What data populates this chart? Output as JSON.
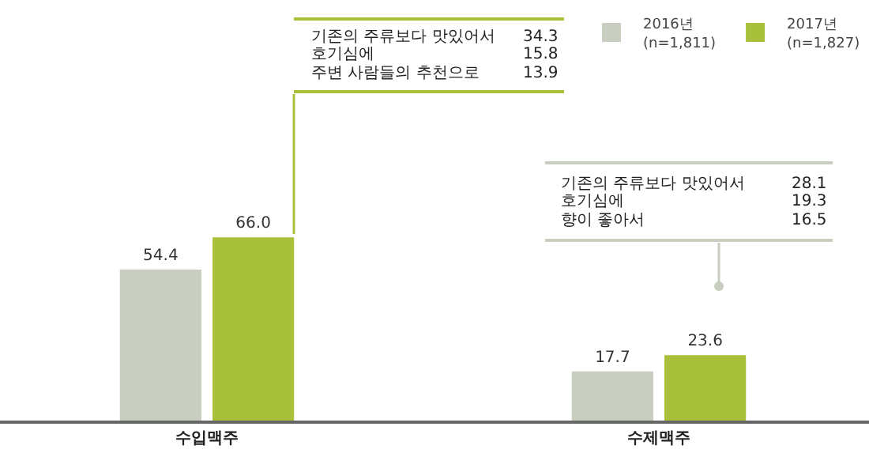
{
  "chart_data": {
    "type": "bar",
    "categories": [
      "수입맥주",
      "수제맥주"
    ],
    "series": [
      {
        "name": "2016년\n(n=1,811)",
        "color": "#c8cfc0",
        "values": [
          54.4,
          17.7
        ],
        "value_labels": [
          "54.4",
          "17.7"
        ]
      },
      {
        "name": "2017년\n(n=1,827)",
        "color": "#a8c03a",
        "values": [
          66.0,
          23.6
        ],
        "value_labels": [
          "66.0",
          "23.6"
        ]
      }
    ],
    "annotations": [
      "기존의 주류보다 맛있어서 34.3\n호기심에 15.8\n주변 사람들의 추천으로 13.9",
      "기존의 주류보다 맛있어서 28.1\n호기심에 19.3\n향이 좋아서 16.5"
    ],
    "legend": "top right"
  }
}
